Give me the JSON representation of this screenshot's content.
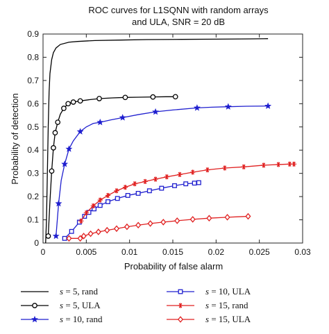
{
  "chart_data": {
    "type": "line",
    "title": [
      "ROC curves for L1SQNN with random arrays",
      "and ULA, SNR = 20 dB"
    ],
    "xlabel": "Probability of false alarm",
    "ylabel": "Probability of detection",
    "xlim": [
      0,
      0.03
    ],
    "ylim": [
      0,
      0.9
    ],
    "xticks": [
      0,
      0.005,
      0.01,
      0.015,
      0.02,
      0.025,
      0.03
    ],
    "xtick_labels": [
      "0",
      "0.005",
      "0.01",
      "0.015",
      "0.02",
      "0.025",
      "0.03"
    ],
    "yticks": [
      0,
      0.1,
      0.2,
      0.3,
      0.4,
      0.5,
      0.6,
      0.7,
      0.8,
      0.9
    ],
    "ytick_labels": [
      "0",
      "0.1",
      "0.2",
      "0.3",
      "0.4",
      "0.5",
      "0.6",
      "0.7",
      "0.8",
      "0.9"
    ],
    "grid": false,
    "legend_position": "below",
    "series": [
      {
        "name": "s = 5, rand",
        "legend_var": "s",
        "legend_rest": " = 5, rand",
        "color": "#000000",
        "marker": "none",
        "x": [
          0.0003,
          0.0004,
          0.0005,
          0.0006,
          0.0007,
          0.0008,
          0.001,
          0.0012,
          0.0015,
          0.002,
          0.003,
          0.004,
          0.006,
          0.009,
          0.012,
          0.016,
          0.02,
          0.024,
          0.026
        ],
        "y": [
          0.0,
          0.1,
          0.3,
          0.5,
          0.65,
          0.73,
          0.79,
          0.82,
          0.84,
          0.855,
          0.865,
          0.868,
          0.872,
          0.874,
          0.876,
          0.877,
          0.878,
          0.879,
          0.88
        ],
        "marker_x": []
      },
      {
        "name": "s = 5, ULA",
        "legend_var": "s",
        "legend_rest": " = 5, ULA",
        "color": "#000000",
        "marker": "circle",
        "x": [
          0.0006,
          0.0008,
          0.001,
          0.0012,
          0.0014,
          0.0017,
          0.002,
          0.0024,
          0.0029,
          0.0035,
          0.0043,
          0.0053,
          0.0065,
          0.008,
          0.0095,
          0.011,
          0.0127,
          0.0142,
          0.0153
        ],
        "y": [
          0.03,
          0.18,
          0.31,
          0.41,
          0.475,
          0.52,
          0.555,
          0.58,
          0.6,
          0.607,
          0.612,
          0.617,
          0.622,
          0.625,
          0.627,
          0.628,
          0.629,
          0.63,
          0.63
        ],
        "marker_x": [
          0.0006,
          0.001,
          0.0012,
          0.0014,
          0.0017,
          0.0024,
          0.0029,
          0.0035,
          0.0043,
          0.0065,
          0.0095,
          0.0127,
          0.0153
        ]
      },
      {
        "name": "s = 10, rand",
        "legend_var": "s",
        "legend_rest": " = 10, rand",
        "color": "#1f1fcf",
        "marker": "star",
        "x": [
          0.0015,
          0.0018,
          0.0021,
          0.0025,
          0.003,
          0.0035,
          0.0043,
          0.005,
          0.0058,
          0.0066,
          0.0078,
          0.0092,
          0.011,
          0.013,
          0.015,
          0.0178,
          0.0195,
          0.0214,
          0.0235,
          0.026
        ],
        "y": [
          0.03,
          0.17,
          0.27,
          0.34,
          0.405,
          0.44,
          0.48,
          0.5,
          0.515,
          0.52,
          0.53,
          0.54,
          0.553,
          0.565,
          0.573,
          0.582,
          0.585,
          0.587,
          0.589,
          0.59
        ],
        "marker_x": [
          0.0015,
          0.0018,
          0.0025,
          0.003,
          0.0043,
          0.0066,
          0.0092,
          0.013,
          0.0178,
          0.0214,
          0.026
        ]
      },
      {
        "name": "s = 10, ULA",
        "legend_var": "s",
        "legend_rest": " = 10, ULA",
        "color": "#1f1fcf",
        "marker": "square",
        "x": [
          0.0025,
          0.0033,
          0.0042,
          0.0048,
          0.0053,
          0.0059,
          0.0066,
          0.0075,
          0.0086,
          0.0098,
          0.011,
          0.0123,
          0.0137,
          0.0152,
          0.0165,
          0.0175,
          0.018
        ],
        "y": [
          0.02,
          0.05,
          0.09,
          0.115,
          0.132,
          0.147,
          0.162,
          0.178,
          0.192,
          0.205,
          0.214,
          0.225,
          0.236,
          0.247,
          0.255,
          0.258,
          0.26
        ],
        "marker_x": [
          0.0025,
          0.0033,
          0.0042,
          0.0048,
          0.0053,
          0.0059,
          0.0066,
          0.0075,
          0.0086,
          0.0098,
          0.011,
          0.0123,
          0.0137,
          0.0152,
          0.0165,
          0.0175,
          0.018
        ]
      },
      {
        "name": "s = 15, rand",
        "legend_var": "s",
        "legend_rest": " = 15, rand",
        "color": "#e02020",
        "marker": "asterisk",
        "x": [
          0.0044,
          0.005,
          0.0058,
          0.0066,
          0.0075,
          0.0085,
          0.0095,
          0.0106,
          0.0118,
          0.013,
          0.0143,
          0.0158,
          0.0173,
          0.019,
          0.021,
          0.0232,
          0.0255,
          0.0272,
          0.0285,
          0.029
        ],
        "y": [
          0.095,
          0.13,
          0.16,
          0.185,
          0.205,
          0.225,
          0.24,
          0.255,
          0.265,
          0.275,
          0.285,
          0.295,
          0.305,
          0.315,
          0.323,
          0.328,
          0.335,
          0.338,
          0.34,
          0.34
        ],
        "marker_x": [
          0.0044,
          0.005,
          0.0058,
          0.0066,
          0.0075,
          0.0085,
          0.0095,
          0.0106,
          0.0118,
          0.013,
          0.0143,
          0.0158,
          0.0173,
          0.019,
          0.021,
          0.0232,
          0.0255,
          0.0272,
          0.0285,
          0.029
        ]
      },
      {
        "name": "s = 15, ULA",
        "legend_var": "s",
        "legend_rest": " = 15, ULA",
        "color": "#e02020",
        "marker": "diamond",
        "x": [
          0.003,
          0.0043,
          0.0047,
          0.0055,
          0.0064,
          0.0074,
          0.0085,
          0.0097,
          0.011,
          0.0124,
          0.0139,
          0.0155,
          0.0173,
          0.0192,
          0.0213,
          0.0225,
          0.0237
        ],
        "y": [
          0.02,
          0.02,
          0.03,
          0.04,
          0.048,
          0.055,
          0.062,
          0.07,
          0.077,
          0.084,
          0.09,
          0.096,
          0.102,
          0.107,
          0.111,
          0.113,
          0.115
        ],
        "marker_x": [
          0.003,
          0.0043,
          0.0047,
          0.0055,
          0.0064,
          0.0074,
          0.0085,
          0.0097,
          0.011,
          0.0124,
          0.0139,
          0.0155,
          0.0173,
          0.0192,
          0.0213,
          0.0237
        ]
      }
    ]
  }
}
